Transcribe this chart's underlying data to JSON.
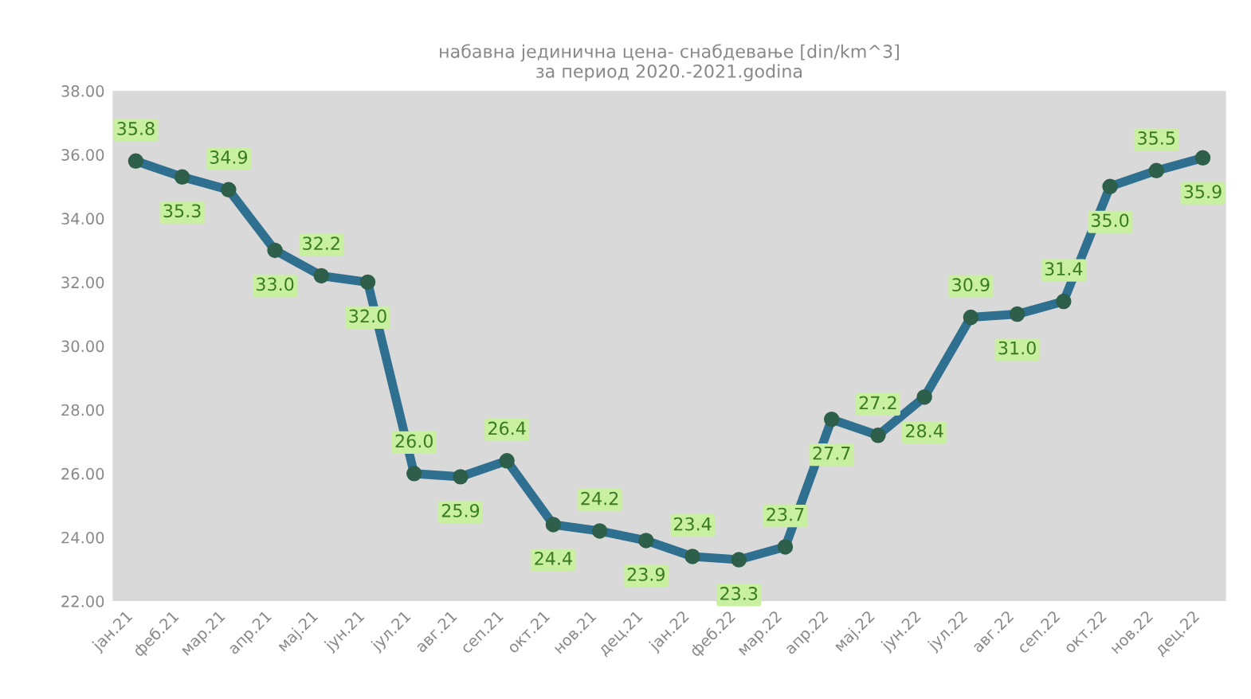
{
  "chart_data": {
    "type": "line",
    "title": "набавна јединична цена- снабдевање [din/km^3]\nза период 2020.-2021.godina",
    "categories": [
      "јан.21",
      "феб.21",
      "мар.21",
      "апр.21",
      "мај.21",
      "јун.21",
      "јул.21",
      "авг.21",
      "сеп.21",
      "окт.21",
      "нов.21",
      "дец.21",
      "јан.22",
      "феб.22",
      "мар.22",
      "апр.22",
      "мај.22",
      "јун.22",
      "јул.22",
      "авг.22",
      "сеп.22",
      "окт.22",
      "нов.22",
      "дец.22"
    ],
    "series": [
      {
        "color": "#2f6f8f",
        "values": [
          35.8,
          35.3,
          34.9,
          33.0,
          32.2,
          32.0,
          26.0,
          25.9,
          26.4,
          24.4,
          24.2,
          23.9,
          23.4,
          23.3,
          23.7,
          27.7,
          27.2,
          28.4,
          30.9,
          31.0,
          31.4,
          35.0,
          35.5,
          35.9
        ],
        "value_labels": [
          "35.8",
          "35.3",
          "34.9",
          "33.0",
          "32.2",
          "32.0",
          "26.0",
          "25.9",
          "26.4",
          "24.4",
          "24.2",
          "23.9",
          "23.4",
          "23.3",
          "23.7",
          "27.7",
          "27.2",
          "28.4",
          "30.9",
          "31.0",
          "31.4",
          "35.0",
          "35.5",
          "35.9"
        ]
      }
    ],
    "ylim": [
      22,
      38
    ],
    "yticks": [
      {
        "value": 22,
        "label": "22.00"
      },
      {
        "value": 24,
        "label": "24.00"
      },
      {
        "value": 26,
        "label": "26.00"
      },
      {
        "value": 28,
        "label": "28.00"
      },
      {
        "value": 30,
        "label": "30.00"
      },
      {
        "value": 32,
        "label": "32.00"
      },
      {
        "value": 34,
        "label": "34.00"
      },
      {
        "value": 36,
        "label": "36.00"
      },
      {
        "value": 38,
        "label": "38.00"
      }
    ],
    "marker": "circle",
    "line_style": "solid",
    "grid": false,
    "legend": false
  }
}
